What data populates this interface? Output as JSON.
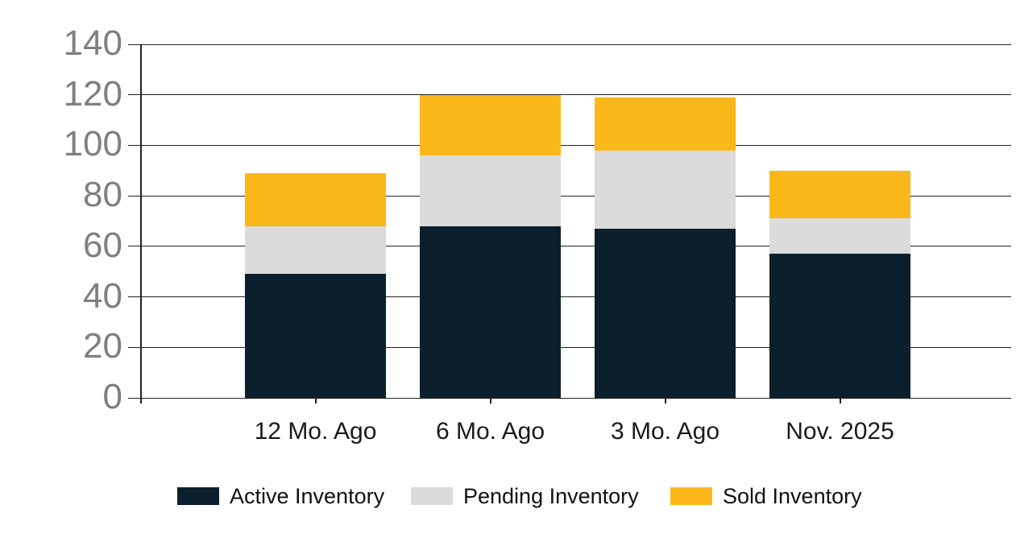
{
  "chart_data": {
    "type": "bar",
    "stacked": true,
    "title": "",
    "categories": [
      "12 Mo. Ago",
      "6 Mo. Ago",
      "3 Mo. Ago",
      "Nov. 2025"
    ],
    "series": [
      {
        "name": "Active Inventory",
        "color": "#0C1F2C",
        "values": [
          49,
          68,
          67,
          57
        ]
      },
      {
        "name": "Pending Inventory",
        "color": "#DBDBDB",
        "values": [
          19,
          28,
          31,
          14
        ]
      },
      {
        "name": "Sold Inventory",
        "color": "#FBB81A",
        "values": [
          21,
          24,
          21,
          19
        ]
      }
    ],
    "stack_totals": [
      89,
      120,
      119,
      90
    ],
    "y_axis": {
      "min": 0,
      "max": 140,
      "step": 20,
      "tick_labels": [
        "0",
        "20",
        "40",
        "60",
        "80",
        "100",
        "120",
        "140"
      ],
      "label_color": "#7f7f7f"
    },
    "x_axis": {
      "label_color": "#1a1a1a"
    },
    "grid": true,
    "gridline_color": "#222222",
    "legend_position": "bottom",
    "background_color": "#ffffff"
  }
}
